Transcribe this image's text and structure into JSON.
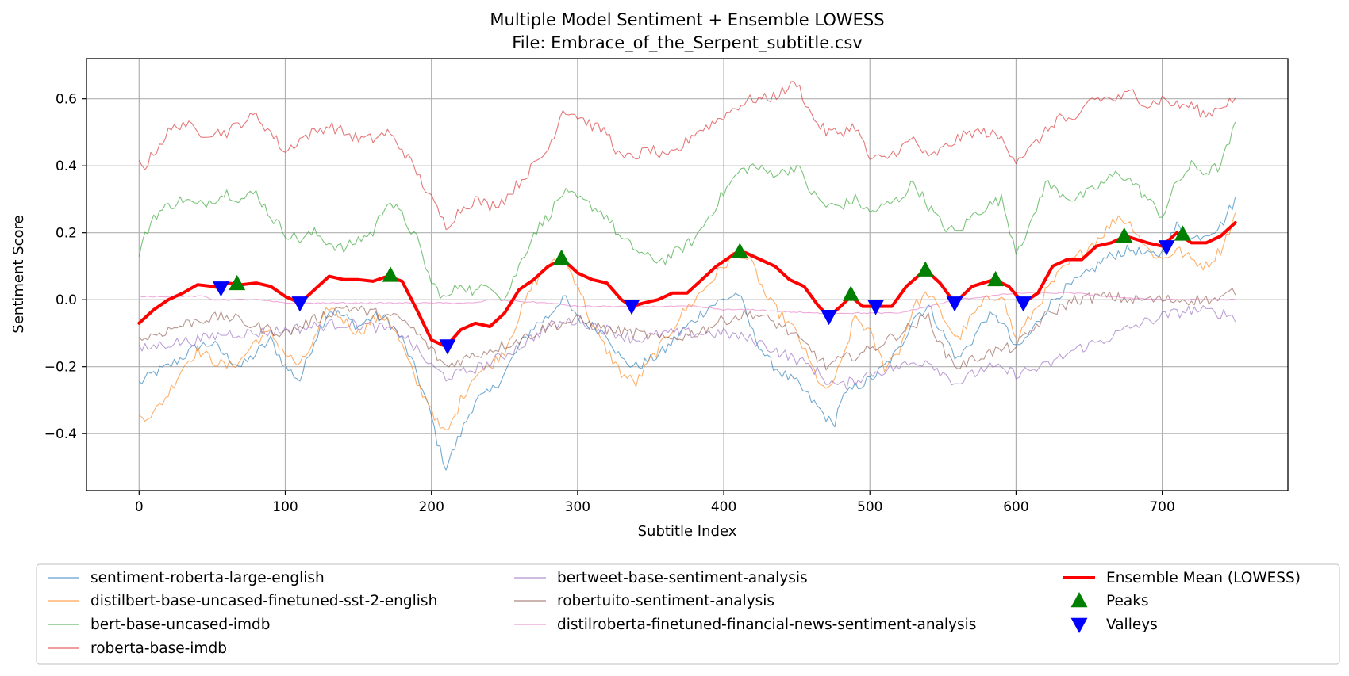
{
  "chart_data": {
    "type": "line",
    "title": "Multiple Model Sentiment + Ensemble LOWESS",
    "subtitle": "File: Embrace_of_the_Serpent_subtitle.csv",
    "xlabel": "Subtitle Index",
    "ylabel": "Sentiment Score",
    "xlim": [
      -36,
      786
    ],
    "ylim": [
      -0.57,
      0.72
    ],
    "xticks": [
      0,
      100,
      200,
      300,
      400,
      500,
      600,
      700
    ],
    "yticks": [
      -0.4,
      -0.2,
      0.0,
      0.2,
      0.4,
      0.6
    ],
    "ytick_labels": [
      "−0.4",
      "−0.2",
      "0.0",
      "0.2",
      "0.4",
      "0.6"
    ],
    "grid": true,
    "legend_position": "bottom",
    "series": [
      {
        "name": "sentiment-roberta-large-english",
        "color": "#1f77b4",
        "x": [
          0,
          10,
          20,
          30,
          40,
          50,
          60,
          70,
          80,
          90,
          100,
          110,
          120,
          130,
          140,
          150,
          160,
          170,
          180,
          190,
          200,
          205,
          210,
          215,
          220,
          230,
          240,
          250,
          260,
          270,
          280,
          290,
          300,
          310,
          320,
          330,
          340,
          350,
          360,
          370,
          380,
          390,
          400,
          410,
          420,
          430,
          440,
          450,
          460,
          470,
          475,
          480,
          490,
          500,
          510,
          520,
          530,
          540,
          550,
          560,
          570,
          580,
          590,
          600,
          610,
          620,
          630,
          640,
          650,
          660,
          670,
          680,
          690,
          700,
          710,
          720,
          730,
          740,
          750
        ],
        "y": [
          -0.25,
          -0.22,
          -0.2,
          -0.17,
          -0.14,
          -0.13,
          -0.17,
          -0.2,
          -0.16,
          -0.12,
          -0.2,
          -0.24,
          -0.12,
          -0.03,
          -0.05,
          -0.08,
          -0.05,
          -0.06,
          -0.12,
          -0.22,
          -0.35,
          -0.44,
          -0.5,
          -0.45,
          -0.4,
          -0.3,
          -0.28,
          -0.22,
          -0.14,
          -0.08,
          -0.05,
          0.01,
          -0.06,
          -0.08,
          -0.1,
          -0.18,
          -0.2,
          -0.18,
          -0.15,
          -0.1,
          -0.06,
          -0.02,
          0.0,
          0.02,
          -0.1,
          -0.18,
          -0.22,
          -0.25,
          -0.3,
          -0.35,
          -0.38,
          -0.3,
          -0.26,
          -0.24,
          -0.2,
          -0.15,
          -0.05,
          -0.02,
          -0.1,
          -0.18,
          -0.12,
          -0.05,
          -0.06,
          -0.15,
          -0.1,
          -0.03,
          0.02,
          0.05,
          0.08,
          0.12,
          0.14,
          0.15,
          0.13,
          0.14,
          0.22,
          0.18,
          0.2,
          0.22,
          0.3
        ]
      },
      {
        "name": "distilbert-base-uncased-finetuned-sst-2-english",
        "color": "#ff7f0e",
        "x": [
          0,
          10,
          20,
          30,
          40,
          50,
          60,
          70,
          80,
          90,
          100,
          110,
          120,
          130,
          140,
          150,
          160,
          170,
          180,
          190,
          200,
          205,
          210,
          215,
          220,
          230,
          240,
          250,
          260,
          270,
          280,
          290,
          300,
          310,
          320,
          330,
          340,
          350,
          360,
          370,
          380,
          390,
          400,
          410,
          420,
          430,
          440,
          450,
          460,
          470,
          480,
          490,
          500,
          510,
          520,
          530,
          540,
          550,
          560,
          570,
          580,
          590,
          600,
          610,
          620,
          630,
          640,
          650,
          660,
          670,
          680,
          690,
          700,
          710,
          720,
          730,
          740,
          750
        ],
        "y": [
          -0.35,
          -0.34,
          -0.28,
          -0.2,
          -0.15,
          -0.18,
          -0.2,
          -0.18,
          -0.12,
          -0.1,
          -0.16,
          -0.2,
          -0.12,
          -0.02,
          -0.06,
          -0.1,
          -0.06,
          -0.05,
          -0.14,
          -0.25,
          -0.32,
          -0.38,
          -0.4,
          -0.36,
          -0.3,
          -0.22,
          -0.2,
          -0.15,
          -0.05,
          0.05,
          0.1,
          0.12,
          0.05,
          -0.08,
          -0.15,
          -0.22,
          -0.25,
          -0.18,
          -0.12,
          -0.05,
          0.0,
          0.05,
          0.1,
          0.15,
          0.1,
          0.0,
          -0.05,
          -0.1,
          -0.2,
          -0.28,
          -0.2,
          -0.05,
          -0.1,
          -0.2,
          -0.15,
          -0.02,
          0.02,
          -0.05,
          -0.12,
          -0.05,
          0.0,
          0.02,
          -0.12,
          -0.05,
          0.02,
          0.08,
          0.12,
          0.16,
          0.2,
          0.25,
          0.22,
          0.15,
          0.12,
          0.15,
          0.12,
          0.1,
          0.15,
          0.25
        ]
      },
      {
        "name": "bert-base-uncased-imdb",
        "color": "#2ca02c",
        "x": [
          0,
          5,
          10,
          20,
          30,
          40,
          50,
          60,
          70,
          80,
          90,
          100,
          110,
          120,
          130,
          140,
          150,
          160,
          170,
          180,
          190,
          200,
          210,
          220,
          230,
          240,
          250,
          260,
          270,
          280,
          290,
          300,
          310,
          320,
          330,
          340,
          350,
          360,
          370,
          380,
          390,
          400,
          410,
          420,
          430,
          440,
          450,
          460,
          470,
          480,
          490,
          500,
          510,
          520,
          530,
          540,
          550,
          560,
          570,
          580,
          590,
          600,
          610,
          620,
          630,
          640,
          650,
          660,
          670,
          680,
          690,
          700,
          710,
          720,
          730,
          740,
          750
        ],
        "y": [
          0.14,
          0.2,
          0.25,
          0.28,
          0.3,
          0.28,
          0.3,
          0.32,
          0.3,
          0.32,
          0.25,
          0.2,
          0.18,
          0.2,
          0.17,
          0.15,
          0.18,
          0.2,
          0.3,
          0.25,
          0.18,
          0.05,
          0.0,
          0.05,
          0.02,
          0.05,
          0.0,
          0.1,
          0.2,
          0.25,
          0.32,
          0.3,
          0.28,
          0.25,
          0.18,
          0.15,
          0.12,
          0.12,
          0.15,
          0.18,
          0.25,
          0.32,
          0.38,
          0.4,
          0.38,
          0.38,
          0.4,
          0.32,
          0.28,
          0.28,
          0.3,
          0.26,
          0.28,
          0.3,
          0.35,
          0.28,
          0.22,
          0.2,
          0.25,
          0.28,
          0.3,
          0.15,
          0.22,
          0.35,
          0.32,
          0.3,
          0.32,
          0.35,
          0.38,
          0.35,
          0.3,
          0.25,
          0.35,
          0.4,
          0.38,
          0.4,
          0.52
        ]
      },
      {
        "name": "roberta-base-imdb",
        "color": "#d62728",
        "x": [
          0,
          5,
          10,
          20,
          30,
          40,
          50,
          60,
          70,
          80,
          90,
          100,
          110,
          120,
          130,
          140,
          150,
          160,
          170,
          180,
          190,
          200,
          210,
          220,
          230,
          240,
          250,
          260,
          270,
          280,
          290,
          300,
          310,
          320,
          330,
          340,
          350,
          360,
          370,
          380,
          390,
          400,
          410,
          420,
          430,
          440,
          450,
          460,
          470,
          480,
          490,
          500,
          510,
          520,
          530,
          540,
          550,
          560,
          570,
          580,
          590,
          600,
          610,
          620,
          630,
          640,
          650,
          660,
          670,
          680,
          690,
          700,
          710,
          720,
          730,
          740,
          750
        ],
        "y": [
          0.41,
          0.4,
          0.44,
          0.5,
          0.53,
          0.5,
          0.5,
          0.5,
          0.53,
          0.55,
          0.5,
          0.44,
          0.48,
          0.5,
          0.52,
          0.5,
          0.48,
          0.48,
          0.5,
          0.45,
          0.38,
          0.3,
          0.22,
          0.27,
          0.3,
          0.28,
          0.3,
          0.35,
          0.4,
          0.45,
          0.57,
          0.55,
          0.52,
          0.5,
          0.42,
          0.43,
          0.45,
          0.42,
          0.45,
          0.5,
          0.52,
          0.55,
          0.58,
          0.6,
          0.6,
          0.62,
          0.65,
          0.55,
          0.5,
          0.5,
          0.52,
          0.42,
          0.42,
          0.45,
          0.48,
          0.42,
          0.45,
          0.48,
          0.5,
          0.5,
          0.48,
          0.42,
          0.45,
          0.5,
          0.55,
          0.52,
          0.6,
          0.6,
          0.6,
          0.62,
          0.58,
          0.6,
          0.58,
          0.58,
          0.55,
          0.58,
          0.6
        ]
      },
      {
        "name": "bertweet-base-sentiment-analysis",
        "color": "#9467bd",
        "x": [
          0,
          20,
          40,
          60,
          80,
          100,
          120,
          140,
          160,
          180,
          190,
          200,
          210,
          220,
          240,
          260,
          280,
          300,
          320,
          340,
          360,
          380,
          400,
          420,
          440,
          460,
          470,
          480,
          500,
          520,
          540,
          550,
          560,
          580,
          600,
          620,
          640,
          660,
          680,
          700,
          720,
          740,
          750
        ],
        "y": [
          -0.15,
          -0.13,
          -0.12,
          -0.1,
          -0.1,
          -0.09,
          -0.08,
          -0.07,
          -0.08,
          -0.1,
          -0.15,
          -0.2,
          -0.23,
          -0.22,
          -0.19,
          -0.14,
          -0.08,
          -0.06,
          -0.09,
          -0.12,
          -0.1,
          -0.1,
          -0.1,
          -0.12,
          -0.16,
          -0.2,
          -0.24,
          -0.26,
          -0.22,
          -0.2,
          -0.18,
          -0.22,
          -0.25,
          -0.2,
          -0.22,
          -0.2,
          -0.15,
          -0.12,
          -0.08,
          -0.05,
          -0.03,
          -0.04,
          -0.05
        ]
      },
      {
        "name": "robertuito-sentiment-analysis",
        "color": "#8c564b",
        "x": [
          0,
          20,
          40,
          60,
          80,
          100,
          120,
          140,
          160,
          180,
          190,
          200,
          210,
          220,
          240,
          260,
          280,
          300,
          320,
          340,
          360,
          380,
          400,
          420,
          440,
          460,
          470,
          480,
          500,
          520,
          540,
          550,
          560,
          580,
          600,
          620,
          640,
          660,
          680,
          700,
          720,
          740,
          750
        ],
        "y": [
          -0.12,
          -0.09,
          -0.06,
          -0.05,
          -0.08,
          -0.1,
          -0.06,
          -0.02,
          -0.04,
          -0.06,
          -0.1,
          -0.15,
          -0.2,
          -0.18,
          -0.15,
          -0.12,
          -0.08,
          -0.06,
          -0.09,
          -0.1,
          -0.12,
          -0.1,
          -0.06,
          -0.04,
          -0.08,
          -0.15,
          -0.2,
          -0.18,
          -0.15,
          -0.1,
          -0.05,
          -0.15,
          -0.2,
          -0.16,
          -0.14,
          -0.05,
          0.0,
          0.01,
          0.0,
          0.0,
          0.0,
          0.0,
          0.03
        ]
      },
      {
        "name": "distilroberta-finetuned-financial-news-sentiment-analysis",
        "color": "#e377c2",
        "x": [
          0,
          30,
          45,
          50,
          80,
          100,
          120,
          150,
          180,
          200,
          230,
          240,
          280,
          300,
          340,
          380,
          400,
          420,
          460,
          480,
          520,
          560,
          580,
          600,
          640,
          660,
          700,
          750
        ],
        "y": [
          0.01,
          0.01,
          0.01,
          0.0,
          0.0,
          -0.01,
          -0.01,
          -0.01,
          -0.01,
          -0.01,
          -0.01,
          0.0,
          -0.01,
          -0.02,
          -0.02,
          -0.02,
          -0.03,
          -0.03,
          -0.04,
          -0.04,
          -0.04,
          0.0,
          0.01,
          0.02,
          0.02,
          0.01,
          0.0,
          0.0
        ]
      },
      {
        "name": "Ensemble Mean (LOWESS)",
        "color": "#ff0000",
        "x": [
          0,
          10,
          20,
          30,
          40,
          50,
          55,
          60,
          70,
          80,
          90,
          100,
          110,
          120,
          130,
          140,
          150,
          160,
          170,
          180,
          190,
          200,
          210,
          220,
          230,
          240,
          250,
          260,
          270,
          280,
          290,
          300,
          310,
          320,
          330,
          337,
          345,
          355,
          365,
          375,
          385,
          395,
          405,
          410,
          415,
          425,
          435,
          445,
          455,
          465,
          472,
          480,
          487,
          495,
          505,
          515,
          525,
          538,
          548,
          558,
          570,
          585,
          595,
          605,
          615,
          625,
          635,
          645,
          655,
          665,
          675,
          690,
          700,
          710,
          720,
          730,
          740,
          750
        ],
        "y": [
          -0.07,
          -0.03,
          0.0,
          0.02,
          0.045,
          0.04,
          0.035,
          0.05,
          0.045,
          0.05,
          0.04,
          0.01,
          -0.01,
          0.03,
          0.07,
          0.06,
          0.06,
          0.055,
          0.07,
          0.055,
          -0.03,
          -0.12,
          -0.14,
          -0.09,
          -0.07,
          -0.08,
          -0.04,
          0.03,
          0.06,
          0.1,
          0.12,
          0.08,
          0.06,
          0.05,
          0.0,
          -0.02,
          -0.01,
          0.0,
          0.02,
          0.02,
          0.06,
          0.1,
          0.13,
          0.145,
          0.14,
          0.12,
          0.1,
          0.06,
          0.04,
          -0.02,
          -0.05,
          -0.02,
          0.01,
          -0.02,
          -0.02,
          -0.02,
          0.04,
          0.09,
          0.05,
          -0.01,
          0.04,
          0.06,
          0.04,
          -0.01,
          0.02,
          0.1,
          0.12,
          0.12,
          0.16,
          0.17,
          0.19,
          0.17,
          0.16,
          0.2,
          0.17,
          0.17,
          0.19,
          0.23
        ]
      }
    ],
    "peaks": {
      "name": "Peaks",
      "color": "#008000",
      "x": [
        67,
        172,
        289,
        411,
        487,
        538,
        586,
        674,
        714
      ],
      "y": [
        0.048,
        0.073,
        0.124,
        0.144,
        0.016,
        0.089,
        0.06,
        0.19,
        0.196
      ]
    },
    "valleys": {
      "name": "Valleys",
      "color": "#0000ff",
      "x": [
        56,
        110,
        211,
        337,
        472,
        504,
        558,
        605,
        703
      ],
      "y": [
        0.035,
        -0.01,
        -0.138,
        -0.019,
        -0.05,
        -0.02,
        -0.01,
        -0.01,
        0.158
      ]
    }
  }
}
